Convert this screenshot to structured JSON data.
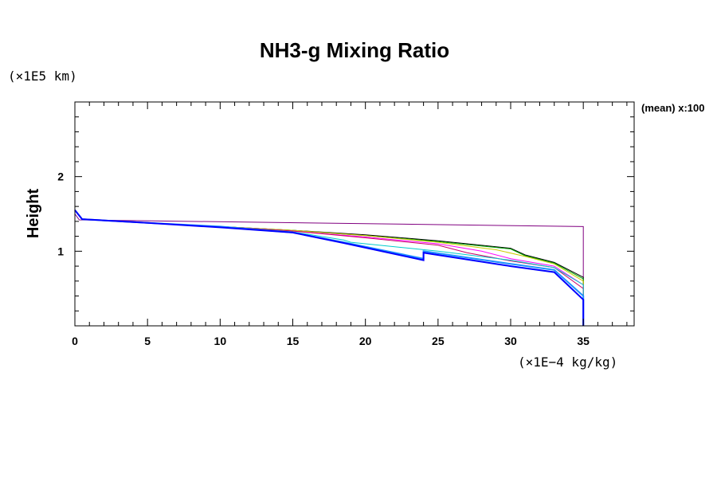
{
  "chart_data": {
    "type": "line",
    "title": "NH3-g Mixing Ratio",
    "ylabel": "Height",
    "y_unit_label": "(×1E5 km)",
    "x_unit_label": "(×1E−4 kg/kg)",
    "side_label": "(mean) x:100",
    "xlim": [
      0,
      38.5
    ],
    "ylim": [
      0,
      3
    ],
    "x_ticks": [
      0,
      5,
      10,
      15,
      20,
      25,
      30,
      35
    ],
    "y_ticks": [
      1,
      2
    ],
    "grid": false,
    "series": [
      {
        "color": "#800080",
        "x": [
          0,
          0,
          0.3,
          35,
          35,
          35
        ],
        "y": [
          3,
          1.5,
          1.42,
          1.33,
          0.6,
          0
        ]
      },
      {
        "color": "#000000",
        "x": [
          0,
          0.5,
          5,
          10,
          15,
          20,
          25,
          30,
          31,
          33,
          35,
          35
        ],
        "y": [
          1.55,
          1.43,
          1.38,
          1.33,
          1.28,
          1.22,
          1.14,
          1.04,
          0.95,
          0.85,
          0.65,
          0
        ]
      },
      {
        "color": "#00aa00",
        "x": [
          0,
          0.5,
          5,
          10,
          15,
          20,
          25,
          30,
          31,
          33,
          35,
          35
        ],
        "y": [
          1.55,
          1.43,
          1.38,
          1.33,
          1.28,
          1.21,
          1.13,
          1.03,
          0.94,
          0.84,
          0.63,
          0
        ]
      },
      {
        "color": "#cccc00",
        "x": [
          0,
          0.5,
          5,
          10,
          15,
          20,
          25,
          29,
          31,
          33,
          35,
          35
        ],
        "y": [
          1.55,
          1.43,
          1.38,
          1.33,
          1.28,
          1.21,
          1.12,
          1.02,
          0.93,
          0.83,
          0.6,
          0
        ]
      },
      {
        "color": "#ff00ff",
        "x": [
          0,
          0.5,
          5,
          10,
          15,
          20,
          25,
          28,
          30,
          33,
          35,
          35
        ],
        "y": [
          1.55,
          1.43,
          1.38,
          1.33,
          1.27,
          1.19,
          1.1,
          1.0,
          0.9,
          0.8,
          0.55,
          0
        ]
      },
      {
        "color": "#cc0066",
        "x": [
          0,
          0.5,
          5,
          10,
          15,
          20,
          25,
          27,
          30,
          33,
          35,
          35
        ],
        "y": [
          1.55,
          1.43,
          1.38,
          1.33,
          1.27,
          1.18,
          1.08,
          0.98,
          0.87,
          0.78,
          0.5,
          0
        ]
      },
      {
        "color": "#00cccc",
        "x": [
          0,
          0.5,
          5,
          10,
          15,
          18.5,
          19,
          25,
          30,
          33,
          35,
          35
        ],
        "y": [
          1.55,
          1.43,
          1.38,
          1.33,
          1.26,
          1.15,
          1.12,
          1.0,
          0.88,
          0.78,
          0.55,
          0
        ]
      },
      {
        "color": "#1e90ff",
        "x": [
          0,
          0.5,
          5,
          10,
          15,
          18.5,
          24,
          24,
          30,
          33,
          35,
          35
        ],
        "y": [
          1.55,
          1.43,
          1.38,
          1.33,
          1.25,
          1.12,
          0.9,
          1.0,
          0.83,
          0.75,
          0.4,
          0
        ]
      },
      {
        "color": "#0000ff",
        "x": [
          0,
          0.5,
          5,
          10,
          15,
          18.5,
          24,
          24,
          30,
          33,
          35,
          35
        ],
        "y": [
          1.55,
          1.43,
          1.38,
          1.32,
          1.25,
          1.11,
          0.88,
          0.98,
          0.8,
          0.72,
          0.35,
          0
        ]
      }
    ]
  }
}
